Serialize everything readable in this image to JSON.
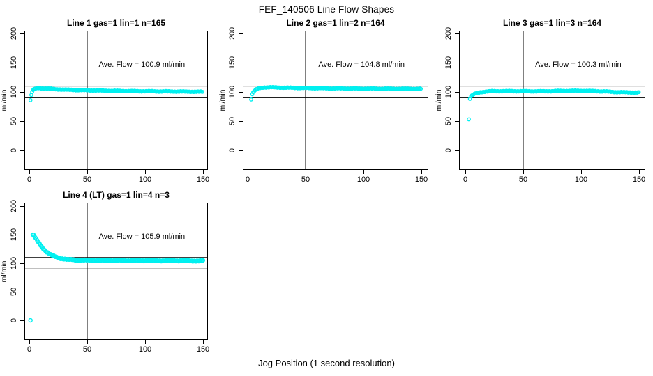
{
  "title": "FEF_140506  Line Flow Shapes",
  "xlabel": "Jog Position (1 second resolution)",
  "chart_data": {
    "type": "scatter",
    "point_color": "#00F0F0",
    "ylabel": "ml/min",
    "x_ticks": [
      0,
      50,
      100,
      150
    ],
    "y_ticks": [
      0,
      50,
      100,
      150,
      200
    ],
    "xlim": [
      0,
      150
    ],
    "ylim": [
      0,
      200
    ],
    "ref_lines_y": [
      110,
      90
    ],
    "vline_x": 50,
    "grid": false,
    "panels": [
      {
        "title": "Line 1 gas=1 lin=1 n=165",
        "n": 165,
        "ave_flow": 100.9,
        "ave_label": "Ave. Flow =  100.9  ml/min",
        "outliers": [],
        "band": [
          [
            1,
            86
          ],
          [
            2,
            97
          ],
          [
            3,
            103
          ],
          [
            5,
            105.5
          ],
          [
            8,
            106.5
          ],
          [
            14,
            106
          ],
          [
            22,
            104.8
          ],
          [
            35,
            103.6
          ],
          [
            50,
            102.8
          ],
          [
            70,
            102
          ],
          [
            90,
            101.4
          ],
          [
            110,
            101
          ],
          [
            130,
            100.7
          ],
          [
            150,
            100.2
          ]
        ]
      },
      {
        "title": "Line 2 gas=1 lin=2 n=164",
        "n": 164,
        "ave_flow": 104.8,
        "ave_label": "Ave. Flow =  104.8  ml/min",
        "outliers": [
          [
            3,
            87
          ]
        ],
        "band": [
          [
            4,
            96
          ],
          [
            5,
            100
          ],
          [
            7,
            104
          ],
          [
            10,
            106.5
          ],
          [
            14,
            107.8
          ],
          [
            20,
            108
          ],
          [
            30,
            107.4
          ],
          [
            45,
            106.8
          ],
          [
            65,
            106.2
          ],
          [
            90,
            105.8
          ],
          [
            120,
            105.5
          ],
          [
            150,
            105.4
          ]
        ]
      },
      {
        "title": "Line 3 gas=1 lin=3 n=164",
        "n": 164,
        "ave_flow": 100.3,
        "ave_label": "Ave. Flow =  100.3  ml/min",
        "outliers": [
          [
            3,
            53
          ],
          [
            4,
            88
          ]
        ],
        "band": [
          [
            5,
            92.5
          ],
          [
            7,
            95.5
          ],
          [
            9,
            97.5
          ],
          [
            13,
            99.5
          ],
          [
            18,
            100.8
          ],
          [
            28,
            101.4
          ],
          [
            45,
            101.3
          ],
          [
            65,
            101
          ],
          [
            85,
            101.8
          ],
          [
            100,
            102
          ],
          [
            115,
            101.2
          ],
          [
            130,
            99.8
          ],
          [
            140,
            99.3
          ],
          [
            150,
            99
          ]
        ]
      },
      {
        "title": "Line 4 (LT) gas=1 lin=4 n=3",
        "n": 3,
        "ave_flow": 105.9,
        "ave_label": "Ave. Flow =  105.9  ml/min",
        "outliers": [
          [
            1,
            0
          ]
        ],
        "band": [
          [
            3,
            150
          ],
          [
            4,
            148.5
          ],
          [
            6,
            142
          ],
          [
            8,
            136
          ],
          [
            11,
            128
          ],
          [
            14,
            121.5
          ],
          [
            18,
            115.5
          ],
          [
            22,
            111.5
          ],
          [
            27,
            108.5
          ],
          [
            33,
            106.5
          ],
          [
            42,
            105.4
          ],
          [
            55,
            105
          ],
          [
            75,
            104.8
          ],
          [
            100,
            104.7
          ],
          [
            125,
            104.6
          ],
          [
            150,
            104
          ]
        ]
      }
    ]
  }
}
